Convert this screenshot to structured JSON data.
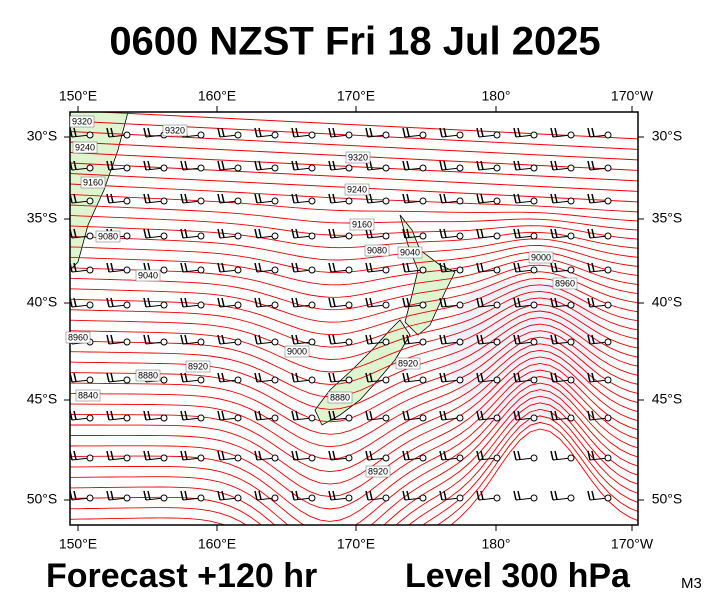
{
  "header": {
    "title": "0600 NZST Fri 18 Jul 2025"
  },
  "axes": {
    "longitudes": [
      "150°E",
      "160°E",
      "170°E",
      "180°",
      "170°W"
    ],
    "latitudes": [
      "30°S",
      "35°S",
      "40°S",
      "45°S",
      "50°S"
    ]
  },
  "contour_labels": [
    "9320",
    "9320",
    "9240",
    "9160",
    "9080",
    "9040",
    "8960",
    "8920",
    "8880",
    "8840",
    "9000",
    "9320",
    "9240",
    "9160",
    "9080",
    "9040",
    "9000",
    "8960",
    "8920",
    "8880",
    "8920"
  ],
  "footer": {
    "forecast": "Forecast +120 hr",
    "level": "Level 300 hPa",
    "model": "M3"
  }
}
